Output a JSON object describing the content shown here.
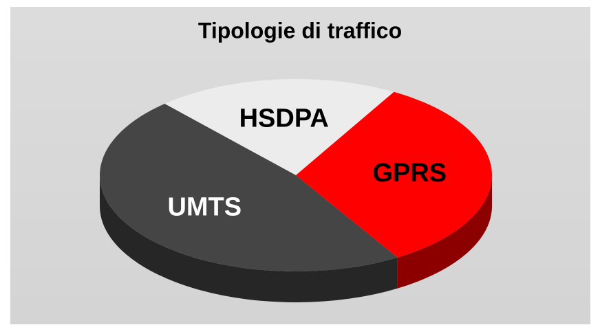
{
  "chart_data": {
    "type": "pie",
    "title": "Tipologie di traffico",
    "categories": [
      "HSDPA",
      "GPRS",
      "UMTS"
    ],
    "values": [
      20,
      33,
      47
    ],
    "colors": [
      "#ececec",
      "#ff0000",
      "#454545"
    ]
  }
}
